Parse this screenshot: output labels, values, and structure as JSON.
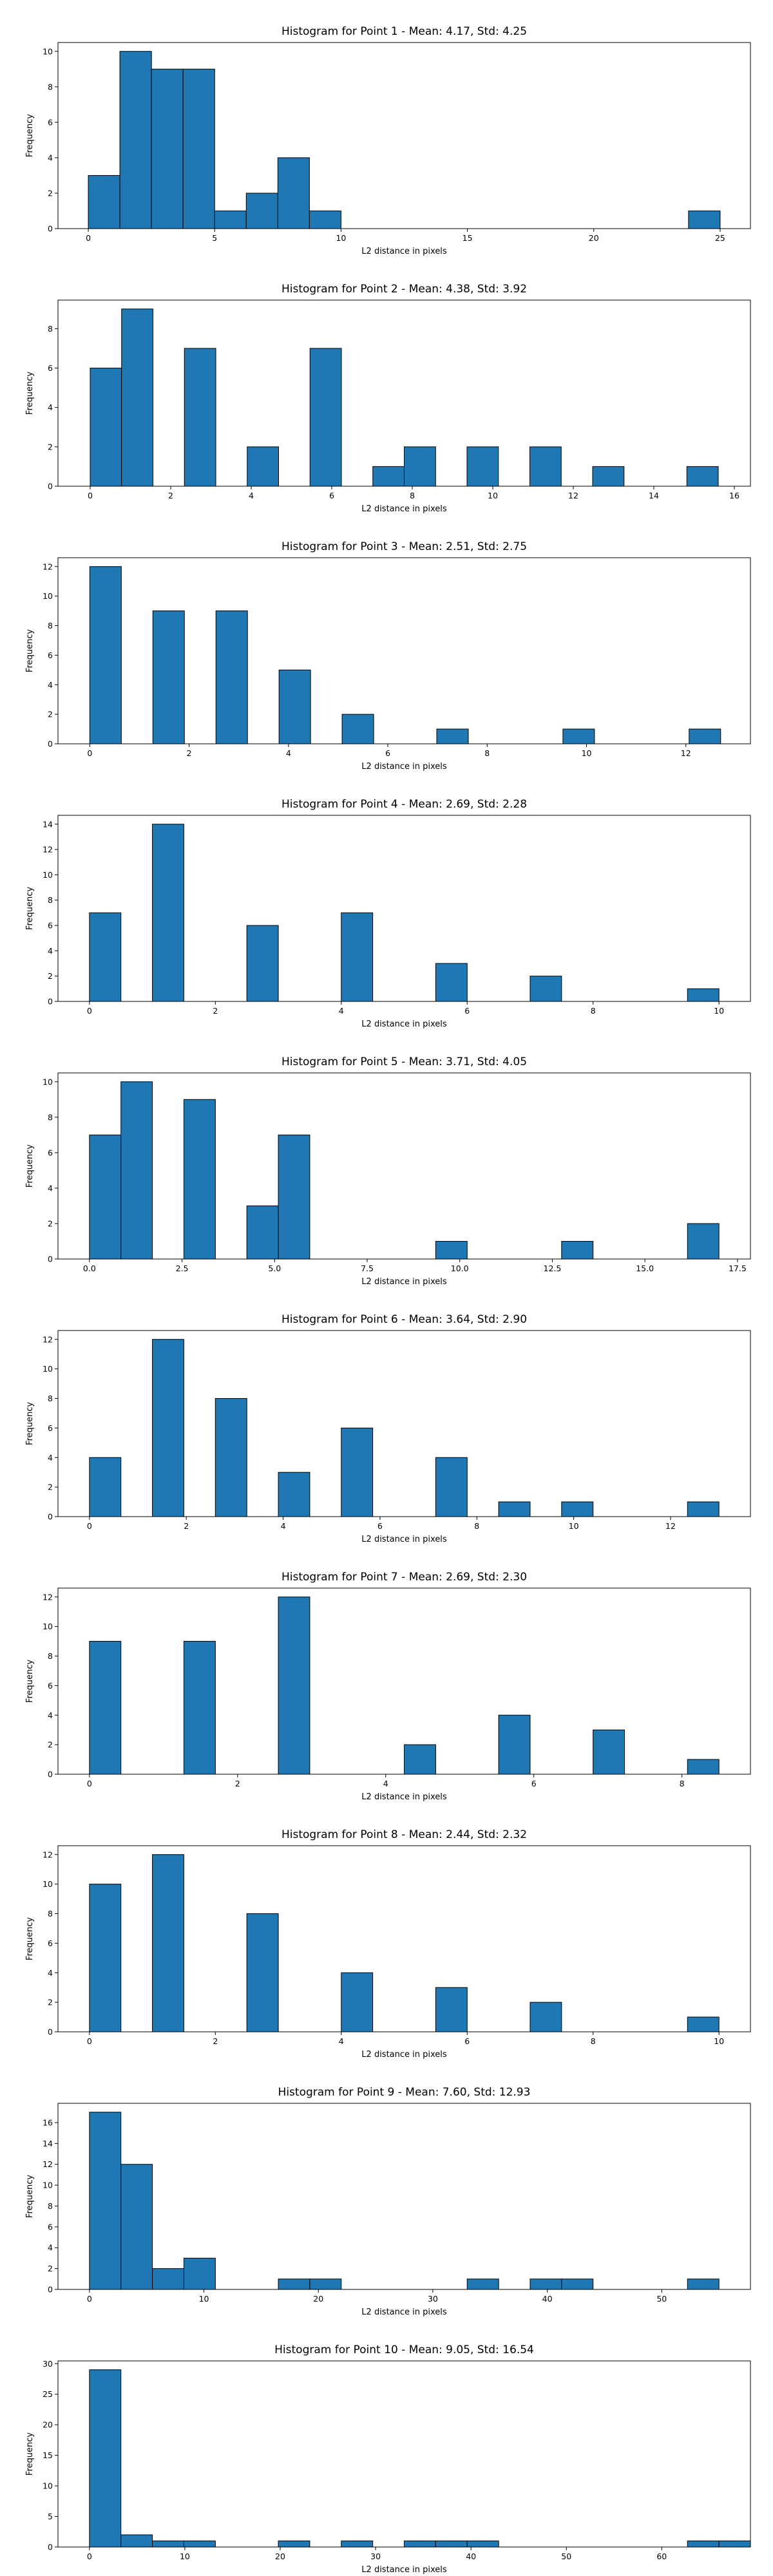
{
  "chart_data": [
    {
      "type": "bar",
      "title": "Histogram for Point 1 - Mean: 4.17, Std: 4.25",
      "xlabel": "L2 distance in pixels",
      "ylabel": "Frequency",
      "xlim": [
        -1.2,
        26.2
      ],
      "ylim": [
        0,
        10.5
      ],
      "xticks": [
        0,
        5,
        10,
        15,
        20,
        25
      ],
      "yticks": [
        0,
        2,
        4,
        6,
        8,
        10
      ],
      "grid": false,
      "bins": [
        {
          "x0": 0.0,
          "x1": 1.25,
          "value": 3
        },
        {
          "x0": 1.25,
          "x1": 2.5,
          "value": 10
        },
        {
          "x0": 2.5,
          "x1": 3.75,
          "value": 9
        },
        {
          "x0": 3.75,
          "x1": 5.0,
          "value": 9
        },
        {
          "x0": 5.0,
          "x1": 6.25,
          "value": 1
        },
        {
          "x0": 6.25,
          "x1": 7.5,
          "value": 2
        },
        {
          "x0": 7.5,
          "x1": 8.75,
          "value": 4
        },
        {
          "x0": 8.75,
          "x1": 10.0,
          "value": 1
        },
        {
          "x0": 23.75,
          "x1": 25.0,
          "value": 1
        }
      ]
    },
    {
      "type": "bar",
      "title": "Histogram for Point 2 - Mean: 4.38, Std: 3.92",
      "xlabel": "L2 distance in pixels",
      "ylabel": "Frequency",
      "xlim": [
        -0.8,
        16.4
      ],
      "ylim": [
        0,
        9.45
      ],
      "xticks": [
        0,
        2,
        4,
        6,
        8,
        10,
        12,
        14,
        16
      ],
      "yticks": [
        0,
        2,
        4,
        6,
        8
      ],
      "grid": false,
      "bins": [
        {
          "x0": 0.0,
          "x1": 0.78,
          "value": 6
        },
        {
          "x0": 0.78,
          "x1": 1.56,
          "value": 9
        },
        {
          "x0": 2.34,
          "x1": 3.12,
          "value": 7
        },
        {
          "x0": 3.9,
          "x1": 4.68,
          "value": 2
        },
        {
          "x0": 5.46,
          "x1": 6.24,
          "value": 7
        },
        {
          "x0": 7.02,
          "x1": 7.8,
          "value": 1
        },
        {
          "x0": 7.8,
          "x1": 8.58,
          "value": 2
        },
        {
          "x0": 9.36,
          "x1": 10.14,
          "value": 2
        },
        {
          "x0": 10.92,
          "x1": 11.7,
          "value": 2
        },
        {
          "x0": 12.48,
          "x1": 13.26,
          "value": 1
        },
        {
          "x0": 14.82,
          "x1": 15.6,
          "value": 1
        }
      ]
    },
    {
      "type": "bar",
      "title": "Histogram for Point 3 - Mean: 2.51, Std: 2.75",
      "xlabel": "L2 distance in pixels",
      "ylabel": "Frequency",
      "xlim": [
        -0.64,
        13.3
      ],
      "ylim": [
        0,
        12.6
      ],
      "xticks": [
        0,
        2,
        4,
        6,
        8,
        10,
        12
      ],
      "yticks": [
        0,
        2,
        4,
        6,
        8,
        10,
        12
      ],
      "grid": false,
      "bins": [
        {
          "x0": 0.0,
          "x1": 0.635,
          "value": 12
        },
        {
          "x0": 1.27,
          "x1": 1.905,
          "value": 9
        },
        {
          "x0": 2.54,
          "x1": 3.175,
          "value": 9
        },
        {
          "x0": 3.81,
          "x1": 4.445,
          "value": 5
        },
        {
          "x0": 5.08,
          "x1": 5.715,
          "value": 2
        },
        {
          "x0": 6.985,
          "x1": 7.62,
          "value": 1
        },
        {
          "x0": 9.525,
          "x1": 10.16,
          "value": 1
        },
        {
          "x0": 12.065,
          "x1": 12.7,
          "value": 1
        }
      ]
    },
    {
      "type": "bar",
      "title": "Histogram for Point 4 - Mean: 2.69, Std: 2.28",
      "xlabel": "L2 distance in pixels",
      "ylabel": "Frequency",
      "xlim": [
        -0.5,
        10.5
      ],
      "ylim": [
        0,
        14.7
      ],
      "xticks": [
        0,
        2,
        4,
        6,
        8,
        10
      ],
      "yticks": [
        0,
        2,
        4,
        6,
        8,
        10,
        12,
        14
      ],
      "grid": false,
      "bins": [
        {
          "x0": 0.0,
          "x1": 0.5,
          "value": 7
        },
        {
          "x0": 1.0,
          "x1": 1.5,
          "value": 14
        },
        {
          "x0": 2.5,
          "x1": 3.0,
          "value": 6
        },
        {
          "x0": 4.0,
          "x1": 4.5,
          "value": 7
        },
        {
          "x0": 5.5,
          "x1": 6.0,
          "value": 3
        },
        {
          "x0": 7.0,
          "x1": 7.5,
          "value": 2
        },
        {
          "x0": 9.5,
          "x1": 10.0,
          "value": 1
        }
      ]
    },
    {
      "type": "bar",
      "title": "Histogram for Point 5 - Mean: 3.71, Std: 4.05",
      "xlabel": "L2 distance in pixels",
      "ylabel": "Frequency",
      "xlim": [
        -0.85,
        17.85
      ],
      "ylim": [
        0,
        10.5
      ],
      "xticks": [
        0.0,
        2.5,
        5.0,
        7.5,
        10.0,
        12.5,
        15.0,
        17.5
      ],
      "yticks": [
        0,
        2,
        4,
        6,
        8,
        10
      ],
      "grid": false,
      "bins": [
        {
          "x0": 0.0,
          "x1": 0.85,
          "value": 7
        },
        {
          "x0": 0.85,
          "x1": 1.7,
          "value": 10
        },
        {
          "x0": 2.55,
          "x1": 3.4,
          "value": 9
        },
        {
          "x0": 4.25,
          "x1": 5.1,
          "value": 3
        },
        {
          "x0": 5.1,
          "x1": 5.95,
          "value": 7
        },
        {
          "x0": 9.35,
          "x1": 10.2,
          "value": 1
        },
        {
          "x0": 12.75,
          "x1": 13.6,
          "value": 1
        },
        {
          "x0": 16.15,
          "x1": 17.0,
          "value": 2
        }
      ]
    },
    {
      "type": "bar",
      "title": "Histogram for Point 6 - Mean: 3.64, Std: 2.90",
      "xlabel": "L2 distance in pixels",
      "ylabel": "Frequency",
      "xlim": [
        -0.65,
        13.65
      ],
      "ylim": [
        0,
        12.6
      ],
      "xticks": [
        0,
        2,
        4,
        6,
        8,
        10,
        12
      ],
      "yticks": [
        0,
        2,
        4,
        6,
        8,
        10,
        12
      ],
      "grid": false,
      "bins": [
        {
          "x0": 0.0,
          "x1": 0.65,
          "value": 4
        },
        {
          "x0": 1.3,
          "x1": 1.95,
          "value": 12
        },
        {
          "x0": 2.6,
          "x1": 3.25,
          "value": 8
        },
        {
          "x0": 3.9,
          "x1": 4.55,
          "value": 3
        },
        {
          "x0": 5.2,
          "x1": 5.85,
          "value": 6
        },
        {
          "x0": 7.15,
          "x1": 7.8,
          "value": 4
        },
        {
          "x0": 8.45,
          "x1": 9.1,
          "value": 1
        },
        {
          "x0": 9.75,
          "x1": 10.4,
          "value": 1
        },
        {
          "x0": 12.35,
          "x1": 13.0,
          "value": 1
        }
      ]
    },
    {
      "type": "bar",
      "title": "Histogram for Point 7 - Mean: 2.69, Std: 2.30",
      "xlabel": "L2 distance in pixels",
      "ylabel": "Frequency",
      "xlim": [
        -0.425,
        8.925
      ],
      "ylim": [
        0,
        12.6
      ],
      "xticks": [
        0,
        2,
        4,
        6,
        8
      ],
      "yticks": [
        0,
        2,
        4,
        6,
        8,
        10,
        12
      ],
      "grid": false,
      "bins": [
        {
          "x0": 0.0,
          "x1": 0.425,
          "value": 9
        },
        {
          "x0": 1.275,
          "x1": 1.7,
          "value": 9
        },
        {
          "x0": 2.55,
          "x1": 2.975,
          "value": 12
        },
        {
          "x0": 4.25,
          "x1": 4.675,
          "value": 2
        },
        {
          "x0": 5.525,
          "x1": 5.95,
          "value": 4
        },
        {
          "x0": 6.8,
          "x1": 7.225,
          "value": 3
        },
        {
          "x0": 8.075,
          "x1": 8.5,
          "value": 1
        }
      ]
    },
    {
      "type": "bar",
      "title": "Histogram for Point 8 - Mean: 2.44, Std: 2.32",
      "xlabel": "L2 distance in pixels",
      "ylabel": "Frequency",
      "xlim": [
        -0.5,
        10.5
      ],
      "ylim": [
        0,
        12.6
      ],
      "xticks": [
        0,
        2,
        4,
        6,
        8,
        10
      ],
      "yticks": [
        0,
        2,
        4,
        6,
        8,
        10,
        12
      ],
      "grid": false,
      "bins": [
        {
          "x0": 0.0,
          "x1": 0.5,
          "value": 10
        },
        {
          "x0": 1.0,
          "x1": 1.5,
          "value": 12
        },
        {
          "x0": 2.5,
          "x1": 3.0,
          "value": 8
        },
        {
          "x0": 4.0,
          "x1": 4.5,
          "value": 4
        },
        {
          "x0": 5.5,
          "x1": 6.0,
          "value": 3
        },
        {
          "x0": 7.0,
          "x1": 7.5,
          "value": 2
        },
        {
          "x0": 9.5,
          "x1": 10.0,
          "value": 1
        }
      ]
    },
    {
      "type": "bar",
      "title": "Histogram for Point 9 - Mean: 7.60, Std: 12.93",
      "xlabel": "L2 distance in pixels",
      "ylabel": "Frequency",
      "xlim": [
        -2.75,
        57.75
      ],
      "ylim": [
        0,
        17.85
      ],
      "xticks": [
        0,
        10,
        20,
        30,
        40,
        50
      ],
      "yticks": [
        0,
        2,
        4,
        6,
        8,
        10,
        12,
        14,
        16
      ],
      "grid": false,
      "bins": [
        {
          "x0": 0.0,
          "x1": 2.75,
          "value": 17
        },
        {
          "x0": 2.75,
          "x1": 5.5,
          "value": 12
        },
        {
          "x0": 5.5,
          "x1": 8.25,
          "value": 2
        },
        {
          "x0": 8.25,
          "x1": 11.0,
          "value": 3
        },
        {
          "x0": 16.5,
          "x1": 19.25,
          "value": 1
        },
        {
          "x0": 19.25,
          "x1": 22.0,
          "value": 1
        },
        {
          "x0": 33.0,
          "x1": 35.75,
          "value": 1
        },
        {
          "x0": 38.5,
          "x1": 41.25,
          "value": 1
        },
        {
          "x0": 41.25,
          "x1": 44.0,
          "value": 1
        },
        {
          "x0": 52.25,
          "x1": 55.0,
          "value": 1
        }
      ]
    },
    {
      "type": "bar",
      "title": "Histogram for Point 10 - Mean: 9.05, Std: 16.54",
      "xlabel": "L2 distance in pixels",
      "ylabel": "Frequency",
      "xlim": [
        -3.3,
        69.3
      ],
      "ylim": [
        0,
        30.45
      ],
      "xticks": [
        0,
        10,
        20,
        30,
        40,
        50,
        60
      ],
      "yticks": [
        0,
        5,
        10,
        15,
        20,
        25,
        30
      ],
      "grid": false,
      "bins": [
        {
          "x0": 0.0,
          "x1": 3.3,
          "value": 29
        },
        {
          "x0": 3.3,
          "x1": 6.6,
          "value": 2
        },
        {
          "x0": 6.6,
          "x1": 9.9,
          "value": 1
        },
        {
          "x0": 9.9,
          "x1": 13.2,
          "value": 1
        },
        {
          "x0": 19.8,
          "x1": 23.1,
          "value": 1
        },
        {
          "x0": 26.4,
          "x1": 29.7,
          "value": 1
        },
        {
          "x0": 33.0,
          "x1": 36.3,
          "value": 1
        },
        {
          "x0": 36.3,
          "x1": 39.6,
          "value": 1
        },
        {
          "x0": 39.6,
          "x1": 42.9,
          "value": 1
        },
        {
          "x0": 62.7,
          "x1": 66.0,
          "value": 1
        },
        {
          "x0": 66.0,
          "x1": 69.3,
          "value": 1
        }
      ]
    }
  ]
}
